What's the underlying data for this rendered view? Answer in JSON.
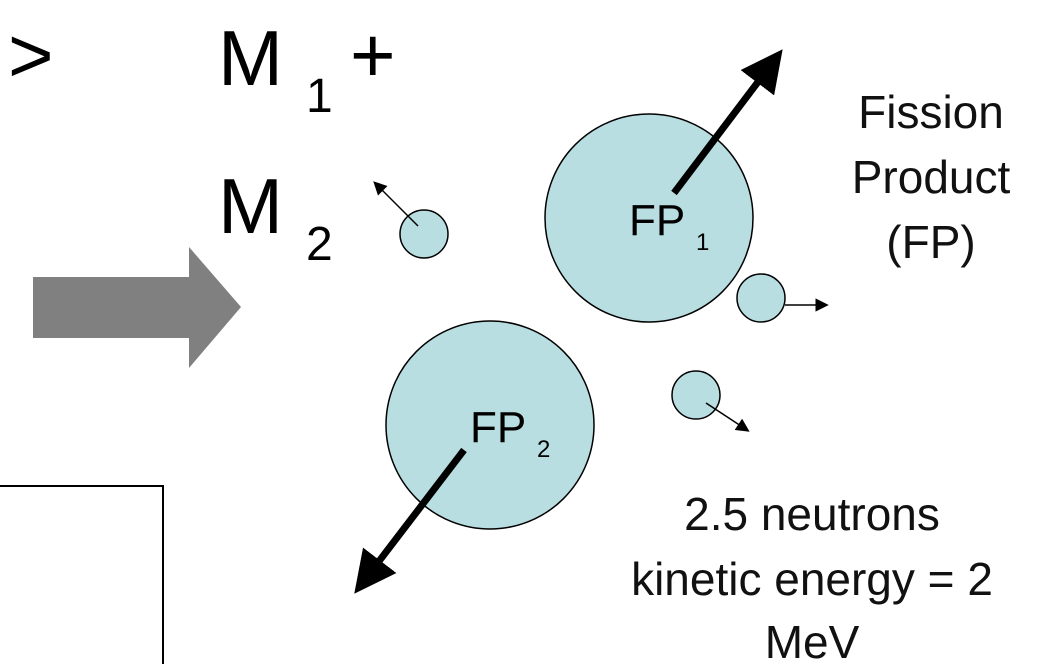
{
  "equation": {
    "gt": ">",
    "m1": "M",
    "m1_sub": "1",
    "plus": "+",
    "m2": "M",
    "m2_sub": "2"
  },
  "fission_product_label": [
    "Fission",
    "Product",
    "(FP)"
  ],
  "fp1": {
    "text": "FP",
    "sub": "1"
  },
  "fp2": {
    "text": "FP",
    "sub": "2"
  },
  "neutrons_label": [
    "2.5 neutrons",
    "kinetic energy = 2",
    "MeV"
  ],
  "colors": {
    "nucleus_fill": "#b9dee2",
    "arrow_gray": "#808080",
    "stroke": "#000000"
  }
}
